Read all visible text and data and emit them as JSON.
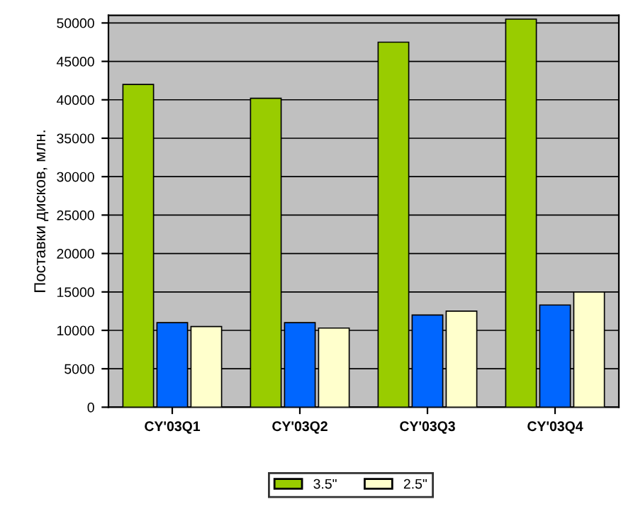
{
  "chart_data": {
    "type": "bar",
    "ylabel": "Поставки дисков, млн.",
    "categories": [
      "CY'03Q1",
      "CY'03Q2",
      "CY'03Q3",
      "CY'03Q4"
    ],
    "series": [
      {
        "name": "3.5\"",
        "color": "#99cc00",
        "values": [
          42000,
          40200,
          47500,
          50500
        ]
      },
      {
        "color": "#0066ff",
        "values": [
          11000,
          11000,
          12000,
          13300
        ]
      },
      {
        "name": "2.5\"",
        "color": "#ffffcc",
        "values": [
          10500,
          10300,
          12500,
          15000
        ]
      }
    ],
    "ylim": [
      0,
      51000
    ],
    "yticks": [
      0,
      5000,
      10000,
      15000,
      20000,
      25000,
      30000,
      35000,
      40000,
      45000,
      50000
    ],
    "grid": "y",
    "legend": "bottom"
  }
}
